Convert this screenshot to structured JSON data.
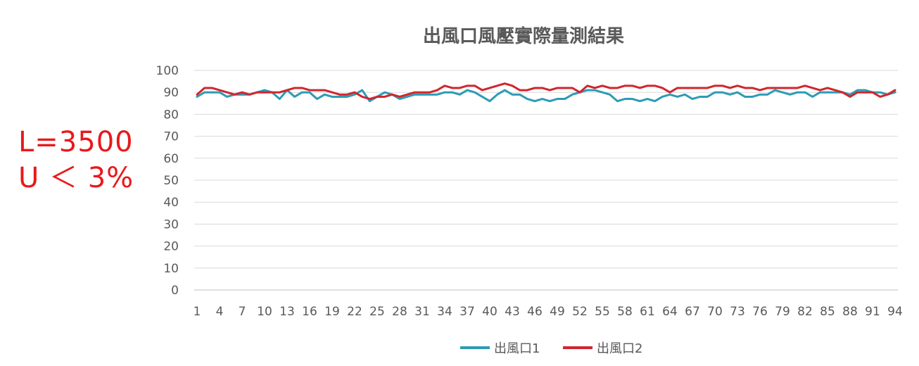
{
  "chart_data": {
    "type": "line",
    "title": "出風口風壓實際量測結果",
    "xlabel": "",
    "ylabel": "",
    "ylim": [
      0,
      100
    ],
    "yticks": [
      0,
      10,
      20,
      30,
      40,
      50,
      60,
      70,
      80,
      90,
      100
    ],
    "x_tick_labels": [
      1,
      4,
      7,
      10,
      13,
      16,
      19,
      22,
      25,
      28,
      31,
      34,
      37,
      40,
      43,
      46,
      49,
      52,
      55,
      58,
      61,
      64,
      67,
      70,
      73,
      76,
      79,
      82,
      85,
      88,
      91,
      94
    ],
    "x": [
      1,
      2,
      3,
      4,
      5,
      6,
      7,
      8,
      9,
      10,
      11,
      12,
      13,
      14,
      15,
      16,
      17,
      18,
      19,
      20,
      21,
      22,
      23,
      24,
      25,
      26,
      27,
      28,
      29,
      30,
      31,
      32,
      33,
      34,
      35,
      36,
      37,
      38,
      39,
      40,
      41,
      42,
      43,
      44,
      45,
      46,
      47,
      48,
      49,
      50,
      51,
      52,
      53,
      54,
      55,
      56,
      57,
      58,
      59,
      60,
      61,
      62,
      63,
      64,
      65,
      66,
      67,
      68,
      69,
      70,
      71,
      72,
      73,
      74,
      75,
      76,
      77,
      78,
      79,
      80,
      81,
      82,
      83,
      84,
      85,
      86,
      87,
      88,
      89,
      90,
      91,
      92,
      93,
      94
    ],
    "grid": true,
    "legend_position": "bottom",
    "series": [
      {
        "name": "出風口1",
        "color": "#2e9bb5",
        "values": [
          88,
          90,
          90,
          90,
          88,
          89,
          89,
          89,
          90,
          91,
          90,
          87,
          91,
          88,
          90,
          90,
          87,
          89,
          88,
          88,
          88,
          89,
          91,
          86,
          88,
          90,
          89,
          87,
          88,
          89,
          89,
          89,
          89,
          90,
          90,
          89,
          91,
          90,
          88,
          86,
          89,
          91,
          89,
          89,
          87,
          86,
          87,
          86,
          87,
          87,
          89,
          90,
          91,
          91,
          90,
          89,
          86,
          87,
          87,
          86,
          87,
          86,
          88,
          89,
          88,
          89,
          87,
          88,
          88,
          90,
          90,
          89,
          90,
          88,
          88,
          89,
          89,
          91,
          90,
          89,
          90,
          90,
          88,
          90,
          90,
          90,
          90,
          89,
          91,
          91,
          90,
          90,
          89,
          90
        ]
      },
      {
        "name": "出風口2",
        "color": "#d0262e",
        "values": [
          89,
          92,
          92,
          91,
          90,
          89,
          90,
          89,
          90,
          90,
          90,
          90,
          91,
          92,
          92,
          91,
          91,
          91,
          90,
          89,
          89,
          90,
          88,
          87,
          88,
          88,
          89,
          88,
          89,
          90,
          90,
          90,
          91,
          93,
          92,
          92,
          93,
          93,
          91,
          92,
          93,
          94,
          93,
          91,
          91,
          92,
          92,
          91,
          92,
          92,
          92,
          90,
          93,
          92,
          93,
          92,
          92,
          93,
          93,
          92,
          93,
          93,
          92,
          90,
          92,
          92,
          92,
          92,
          92,
          93,
          93,
          92,
          93,
          92,
          92,
          91,
          92,
          92,
          92,
          92,
          92,
          93,
          92,
          91,
          92,
          91,
          90,
          88,
          90,
          90,
          90,
          88,
          89,
          91
        ]
      }
    ]
  },
  "annotations": [
    "L=3500",
    "U ＜ 3%"
  ]
}
